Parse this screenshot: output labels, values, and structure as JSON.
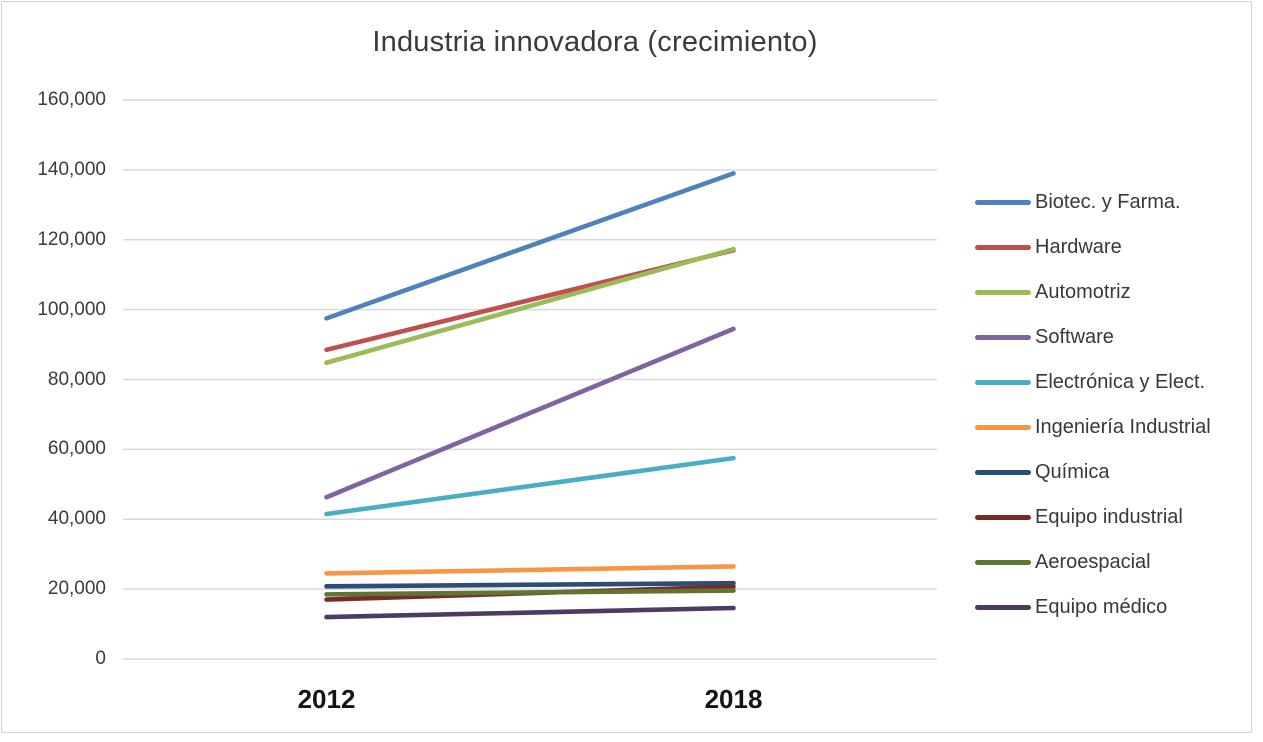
{
  "chart_data": {
    "type": "line",
    "title": "Industria innovadora (crecimiento)",
    "x": [
      "2012",
      "2018"
    ],
    "series": [
      {
        "name": "Biotec. y Farma.",
        "color": "#4F81BD",
        "values": [
          97500,
          139000
        ]
      },
      {
        "name": "Hardware",
        "color": "#C0504D",
        "values": [
          88500,
          117000
        ]
      },
      {
        "name": "Automotriz",
        "color": "#9BBB59",
        "values": [
          84800,
          117300
        ]
      },
      {
        "name": "Software",
        "color": "#8064A2",
        "values": [
          46300,
          94500
        ]
      },
      {
        "name": "Electrónica y Elect.",
        "color": "#4BACC6",
        "values": [
          41500,
          57500
        ]
      },
      {
        "name": "Ingeniería Industrial",
        "color": "#F79646",
        "values": [
          24500,
          26500
        ]
      },
      {
        "name": "Química",
        "color": "#2C4D75",
        "values": [
          20800,
          21700
        ]
      },
      {
        "name": "Equipo industrial",
        "color": "#772C2A",
        "values": [
          17000,
          20700
        ]
      },
      {
        "name": "Aeroespacial",
        "color": "#5F7530",
        "values": [
          18500,
          19600
        ]
      },
      {
        "name": "Equipo médico",
        "color": "#4D3B62",
        "values": [
          12000,
          14600
        ]
      }
    ],
    "ylim": [
      0,
      160000
    ],
    "ytick_step": 20000,
    "ytick_labels": [
      "0",
      "20,000",
      "40,000",
      "60,000",
      "80,000",
      "100,000",
      "120,000",
      "140,000",
      "160,000"
    ],
    "grid": true,
    "gridline_color": "#d9d9d9",
    "axis_line_color": "#d9d9d9",
    "legend_position": "right",
    "background": "#ffffff",
    "frame_border_color": "#d2d2d2"
  }
}
